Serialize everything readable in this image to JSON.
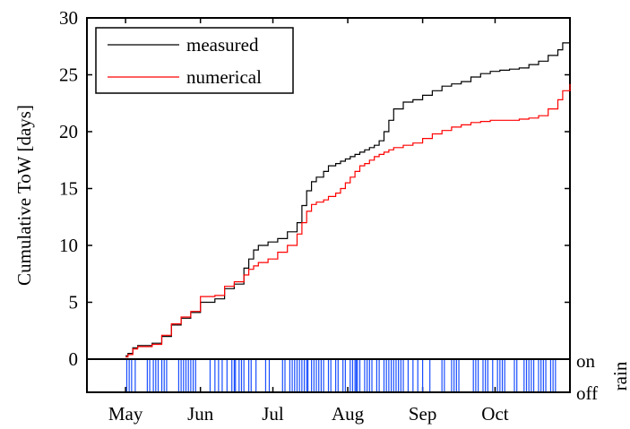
{
  "chart_data": {
    "type": "line",
    "ylabel": "Cumulative ToW [days]",
    "ylim": [
      0,
      30
    ],
    "yticks": [
      0,
      5,
      10,
      15,
      20,
      25,
      30
    ],
    "x_labels": [
      "May",
      "Jun",
      "Jul",
      "Aug",
      "Sep",
      "Oct"
    ],
    "x_unit": "day of year",
    "x_range": [
      105,
      305
    ],
    "x_tick_positions": [
      121,
      152,
      182,
      213,
      244,
      274
    ],
    "grid": false,
    "legend_position": "top-left",
    "series": [
      {
        "name": "measured",
        "color": "#000000",
        "x": [
          121,
          122,
          124,
          126,
          128,
          132,
          136,
          140,
          144,
          148,
          152,
          158,
          162,
          166,
          170,
          172,
          174,
          176,
          180,
          184,
          188,
          192,
          194,
          196,
          198,
          200,
          203,
          205,
          208,
          210,
          212,
          214,
          216,
          218,
          220,
          222,
          224,
          226,
          228,
          230,
          232,
          236,
          240,
          244,
          248,
          252,
          256,
          260,
          264,
          268,
          272,
          276,
          280,
          284,
          288,
          292,
          296,
          300,
          302,
          305
        ],
        "values": [
          0.3,
          0.5,
          1.0,
          1.2,
          1.2,
          1.4,
          2.0,
          3.0,
          3.6,
          4.1,
          5.0,
          5.3,
          6.2,
          6.6,
          8.0,
          8.8,
          9.6,
          10.0,
          10.3,
          10.6,
          11.2,
          12.0,
          13.5,
          14.8,
          15.6,
          16.0,
          16.5,
          17.0,
          17.2,
          17.4,
          17.6,
          17.8,
          18.0,
          18.2,
          18.4,
          18.6,
          18.8,
          19.2,
          20.0,
          21.0,
          22.0,
          22.6,
          22.8,
          23.2,
          23.6,
          24.0,
          24.2,
          24.4,
          24.8,
          25.1,
          25.3,
          25.4,
          25.5,
          25.6,
          25.9,
          26.2,
          26.7,
          27.2,
          27.8,
          28.2
        ]
      },
      {
        "name": "numerical",
        "color": "#ff0000",
        "x": [
          121,
          122,
          124,
          126,
          128,
          132,
          136,
          140,
          144,
          148,
          152,
          158,
          162,
          166,
          170,
          172,
          174,
          176,
          180,
          184,
          188,
          192,
          194,
          196,
          198,
          200,
          203,
          205,
          208,
          210,
          212,
          214,
          216,
          218,
          220,
          222,
          224,
          226,
          228,
          230,
          232,
          236,
          240,
          244,
          248,
          252,
          256,
          260,
          264,
          268,
          272,
          276,
          280,
          284,
          288,
          292,
          296,
          300,
          302,
          305
        ],
        "values": [
          0.2,
          0.4,
          0.9,
          1.1,
          1.1,
          1.3,
          2.1,
          3.1,
          3.7,
          4.2,
          5.5,
          5.6,
          6.4,
          6.8,
          7.4,
          7.9,
          8.2,
          8.5,
          8.8,
          9.4,
          10.0,
          11.0,
          12.0,
          13.0,
          13.6,
          13.8,
          14.0,
          14.3,
          14.6,
          15.0,
          15.5,
          16.0,
          16.5,
          17.0,
          17.2,
          17.5,
          17.8,
          18.0,
          18.2,
          18.4,
          18.6,
          18.8,
          19.0,
          19.4,
          19.8,
          20.1,
          20.4,
          20.6,
          20.8,
          20.9,
          21.0,
          21.0,
          21.0,
          21.1,
          21.2,
          21.4,
          22.0,
          22.8,
          23.6,
          24.2
        ]
      }
    ],
    "rain_panel": {
      "ylabel": "rain",
      "state_labels": [
        "on",
        "off"
      ],
      "color": "#1a4fff",
      "rain_days": [
        121.5,
        122.5,
        123.5,
        125,
        130,
        131,
        132.5,
        133.5,
        134.5,
        136,
        137,
        138,
        143,
        144,
        145,
        146,
        147,
        148,
        149,
        150,
        156,
        158,
        159.5,
        161,
        163,
        165,
        166,
        166.5,
        168,
        169,
        170,
        172,
        173,
        175,
        179,
        180.5,
        186,
        187,
        189,
        190,
        191,
        192,
        193,
        194,
        195,
        196,
        196.5,
        198,
        199,
        200,
        201,
        202,
        203,
        205,
        206,
        208,
        209,
        211,
        212,
        214,
        215,
        216,
        216.5,
        217,
        218,
        220,
        221,
        222,
        223,
        225,
        226,
        228,
        229,
        230,
        231,
        232,
        233,
        234,
        235,
        236,
        238,
        240,
        242,
        244,
        247,
        252,
        253,
        256,
        257,
        258,
        259,
        265,
        266,
        267,
        269,
        270,
        271,
        273,
        275,
        276,
        277,
        278,
        282,
        283,
        286,
        287,
        288,
        289,
        290,
        292,
        293,
        294,
        295,
        297,
        298,
        299
      ]
    }
  }
}
